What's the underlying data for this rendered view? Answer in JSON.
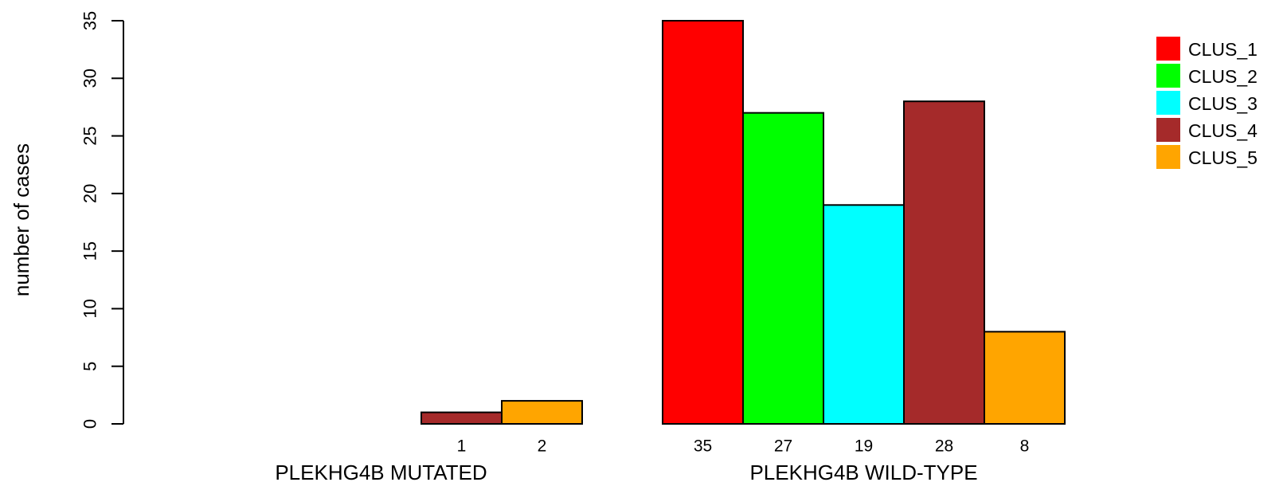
{
  "chart_data": {
    "type": "bar",
    "ylabel": "number of cases",
    "ylim": [
      0,
      35
    ],
    "yticks": [
      0,
      5,
      10,
      15,
      20,
      25,
      30,
      35
    ],
    "groups": [
      "PLEKHG4B MUTATED",
      "PLEKHG4B WILD-TYPE"
    ],
    "series": [
      {
        "name": "CLUS_1",
        "color": "#ff0000",
        "values": [
          0,
          35
        ]
      },
      {
        "name": "CLUS_2",
        "color": "#00ff00",
        "values": [
          0,
          27
        ]
      },
      {
        "name": "CLUS_3",
        "color": "#00ffff",
        "values": [
          0,
          19
        ]
      },
      {
        "name": "CLUS_4",
        "color": "#a52a2a",
        "values": [
          1,
          28
        ]
      },
      {
        "name": "CLUS_5",
        "color": "#ffa500",
        "values": [
          2,
          8
        ]
      }
    ],
    "legend_position": "top-right",
    "grid": false
  }
}
